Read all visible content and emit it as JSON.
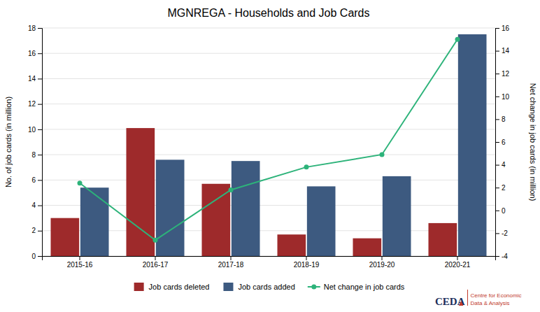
{
  "chart_data": {
    "type": "bar",
    "title": "MGNREGA - Households and Job Cards",
    "categories": [
      "2015-16",
      "2016-17",
      "2017-18",
      "2018-19",
      "2019-20",
      "2020-21"
    ],
    "series": [
      {
        "name": "Job cards deleted",
        "color": "#9e2a2b",
        "values": [
          3.0,
          10.1,
          5.7,
          1.7,
          1.4,
          2.6
        ]
      },
      {
        "name": "Job cards added",
        "color": "#3d5a80",
        "values": [
          5.4,
          7.6,
          7.5,
          5.5,
          6.3,
          17.5
        ]
      },
      {
        "name": "Net change in job cards",
        "type": "line",
        "axis": "y2",
        "color": "#2db37a",
        "marker": "circle",
        "values": [
          2.4,
          -2.6,
          1.8,
          3.8,
          4.9,
          15.0
        ]
      }
    ],
    "ylabel": "No. of job cards (in million)",
    "y2label": "Net change in job cards (in million)",
    "ylim": [
      0,
      18
    ],
    "yticks": [
      0,
      2,
      4,
      6,
      8,
      10,
      12,
      14,
      16,
      18
    ],
    "y2lim": [
      -4,
      16
    ],
    "y2ticks": [
      -4,
      -2,
      0,
      2,
      4,
      6,
      8,
      10,
      12,
      14,
      16
    ],
    "grid": true,
    "legend": "bottom",
    "annotations": [
      "CED",
      "A",
      "Centre for Economic",
      "Data & Analysis"
    ]
  }
}
